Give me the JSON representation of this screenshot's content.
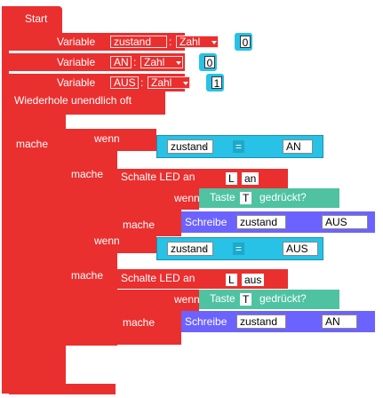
{
  "start": {
    "label": "Start"
  },
  "variables": [
    {
      "prefix": "Variable",
      "name": "zustand",
      "type": "Zahl",
      "value": "0"
    },
    {
      "prefix": "Variable",
      "name": "AN",
      "type": "Zahl",
      "value": "0"
    },
    {
      "prefix": "Variable",
      "name": "AUS",
      "type": "Zahl",
      "value": "1"
    }
  ],
  "loop": {
    "label": "Wiederhole unendlich oft",
    "do_label": "mache"
  },
  "blocks": [
    {
      "if_label": "wenn",
      "do_label": "mache",
      "cond": {
        "left": "zustand",
        "op": "=",
        "right": "AN"
      },
      "led_label": "Schalte LED an",
      "led_pin": "L",
      "led_state": "an",
      "inner_if": "wenn",
      "inner_do": "mache",
      "button_cond": {
        "prefix": "Taste",
        "pin": "T",
        "suffix": "gedrückt?"
      },
      "write": {
        "label": "Schreibe",
        "target": "zustand",
        "value": "AUS"
      }
    },
    {
      "if_label": "wenn",
      "do_label": "mache",
      "cond": {
        "left": "zustand",
        "op": "=",
        "right": "AUS"
      },
      "led_label": "Schalte LED an",
      "led_pin": "L",
      "led_state": "aus",
      "inner_if": "wenn",
      "inner_do": "mache",
      "button_cond": {
        "prefix": "Taste",
        "pin": "T",
        "suffix": "gedrückt?"
      },
      "write": {
        "label": "Schreibe",
        "target": "zustand",
        "value": "AN"
      }
    }
  ],
  "colors": {
    "control": "#ea2f2f",
    "logic": "#27c2e6",
    "accent": "#6c63ff"
  }
}
